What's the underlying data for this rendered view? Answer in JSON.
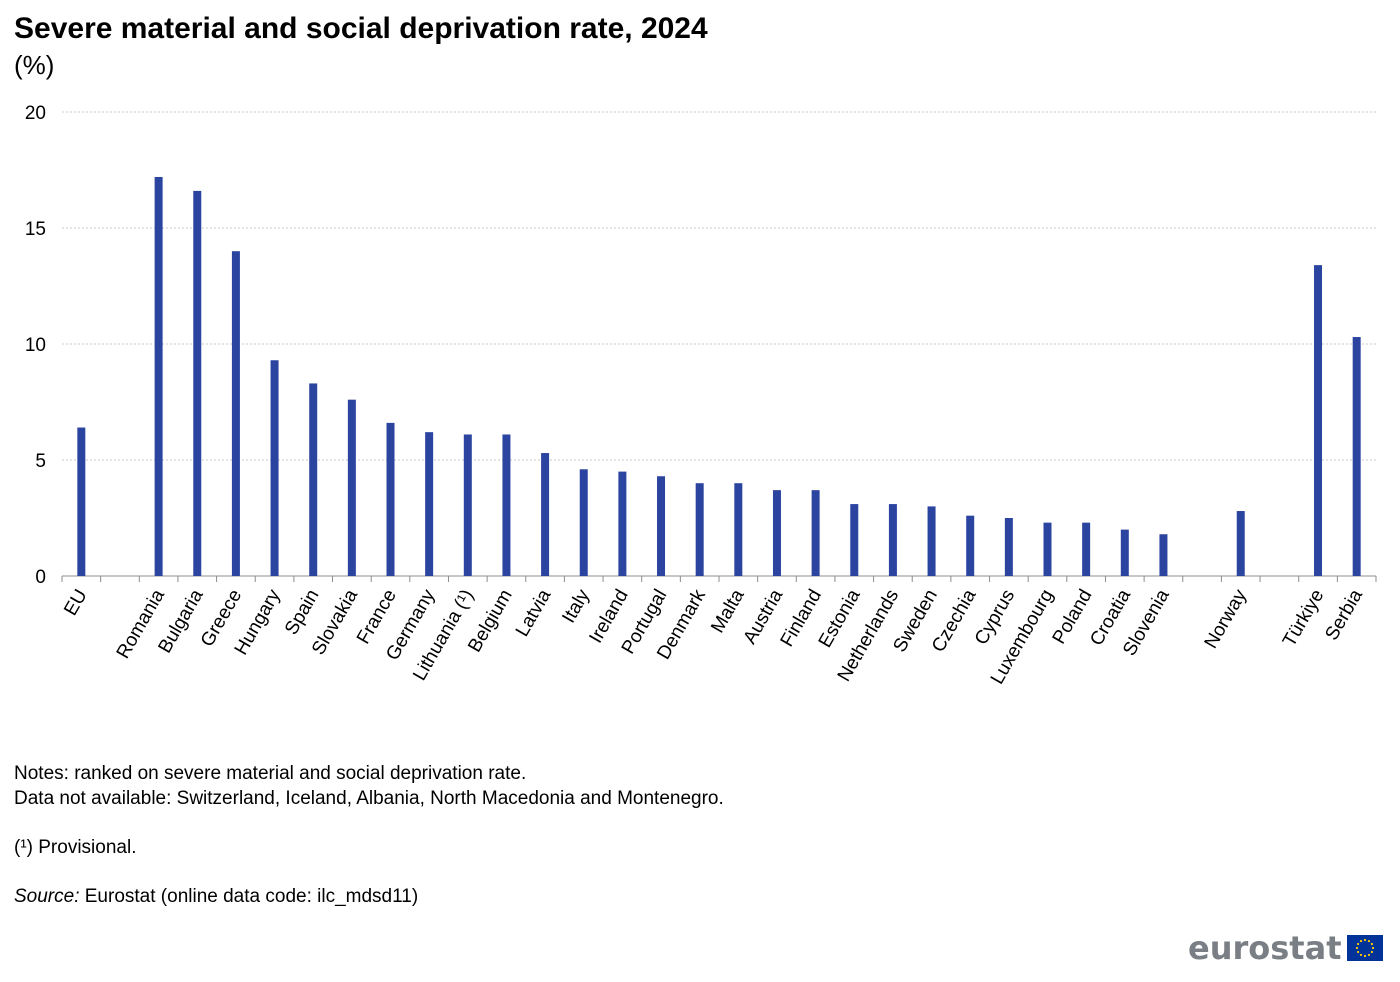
{
  "header": {
    "title": "Severe material and social deprivation rate, 2024",
    "unit": "(%)"
  },
  "chart_data": {
    "type": "bar",
    "title": "Severe material and social deprivation rate, 2024",
    "ylabel": "(%)",
    "xlabel": "",
    "ylim": [
      0,
      20
    ],
    "yticks": [
      0,
      5,
      10,
      15,
      20
    ],
    "grid": true,
    "bar_color": "#2b44a0",
    "categories": [
      "EU",
      "Romania",
      "Bulgaria",
      "Greece",
      "Hungary",
      "Spain",
      "Slovakia",
      "France",
      "Germany",
      "Lithuania (¹)",
      "Belgium",
      "Latvia",
      "Italy",
      "Ireland",
      "Portugal",
      "Denmark",
      "Malta",
      "Austria",
      "Finland",
      "Estonia",
      "Netherlands",
      "Sweden",
      "Czechia",
      "Cyprus",
      "Luxembourg",
      "Poland",
      "Croatia",
      "Slovenia",
      "Norway",
      "Türkiye",
      "Serbia"
    ],
    "values": [
      6.4,
      17.2,
      16.6,
      14.0,
      9.3,
      8.3,
      7.6,
      6.6,
      6.2,
      6.1,
      6.1,
      5.3,
      4.6,
      4.5,
      4.3,
      4.0,
      4.0,
      3.7,
      3.7,
      3.1,
      3.1,
      3.0,
      2.6,
      2.5,
      2.3,
      2.3,
      2.0,
      1.8,
      2.8,
      13.4,
      10.3
    ],
    "groups": [
      1,
      27,
      1,
      2
    ]
  },
  "notes": {
    "line1": "Notes: ranked on severe material and social deprivation rate.",
    "line2": "Data not available: Switzerland, Iceland, Albania, North Macedonia and Montenegro.",
    "line3": "(¹) Provisional.",
    "source_label": "Source:",
    "source_text": " Eurostat (online data code: ilc_mdsd11)"
  },
  "logo": {
    "text": "eurostat",
    "icon": "eu-flag-icon",
    "flag_color": "#003399",
    "star_color": "#ffcc00"
  }
}
